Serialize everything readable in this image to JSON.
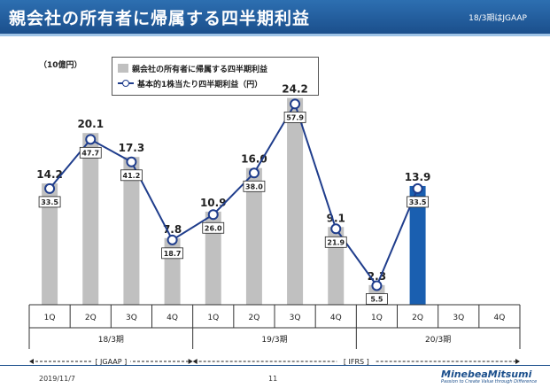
{
  "header": {
    "title": "親会社の所有者に帰属する四半期利益",
    "note": "18/3期はJGAAP"
  },
  "unit_label": "（10億円）",
  "legend": {
    "bar_label": "親会社の所有者に帰属する四半期利益",
    "line_label": "基本的1株当たり四半期利益（円）"
  },
  "chart_data": {
    "type": "bar",
    "categories": [
      "1Q",
      "2Q",
      "3Q",
      "4Q",
      "1Q",
      "2Q",
      "3Q",
      "4Q",
      "1Q",
      "2Q",
      "3Q",
      "4Q"
    ],
    "groups": [
      {
        "label": "18/3期",
        "categories": [
          "1Q",
          "2Q",
          "3Q",
          "4Q"
        ]
      },
      {
        "label": "19/3期",
        "categories": [
          "1Q",
          "2Q",
          "3Q",
          "4Q"
        ]
      },
      {
        "label": "20/3期",
        "categories": [
          "1Q",
          "2Q",
          "3Q",
          "4Q"
        ]
      }
    ],
    "series": [
      {
        "name": "親会社の所有者に帰属する四半期利益",
        "type": "bar",
        "values": [
          14.2,
          20.1,
          17.3,
          7.8,
          10.9,
          16.0,
          24.2,
          9.1,
          2.3,
          13.9,
          null,
          null
        ],
        "labels": [
          "14.2",
          "20.1",
          "17.3",
          "7.8",
          "10.9",
          "16.0",
          "24.2",
          "9.1",
          "2.3",
          "13.9",
          "",
          ""
        ],
        "color": "#c0c0c0",
        "highlight_index": 9,
        "highlight_color": "#1a5fb0"
      },
      {
        "name": "基本的1株当たり四半期利益（円）",
        "type": "line",
        "values": [
          33.5,
          47.7,
          41.2,
          18.7,
          26.0,
          38.0,
          57.9,
          21.9,
          5.5,
          33.5,
          null,
          null
        ],
        "labels": [
          "33.5",
          "47.7",
          "41.2",
          "18.7",
          "26.0",
          "38.0",
          "57.9",
          "21.9",
          "5.5",
          "33.5",
          "",
          ""
        ],
        "color": "#1f3d8c"
      }
    ],
    "bar_ylim": [
      0,
      28
    ],
    "line_ylim": [
      0,
      69
    ],
    "grid": false,
    "legend_position": "top-left"
  },
  "accounting": {
    "jgaap": "[ JGAAP ]",
    "ifrs": "[ IFRS ]"
  },
  "footer": {
    "date": "2019/11/7",
    "page": "11",
    "logo": "MinebeaMitsumi",
    "tagline": "Passion to Create Value through Difference"
  }
}
